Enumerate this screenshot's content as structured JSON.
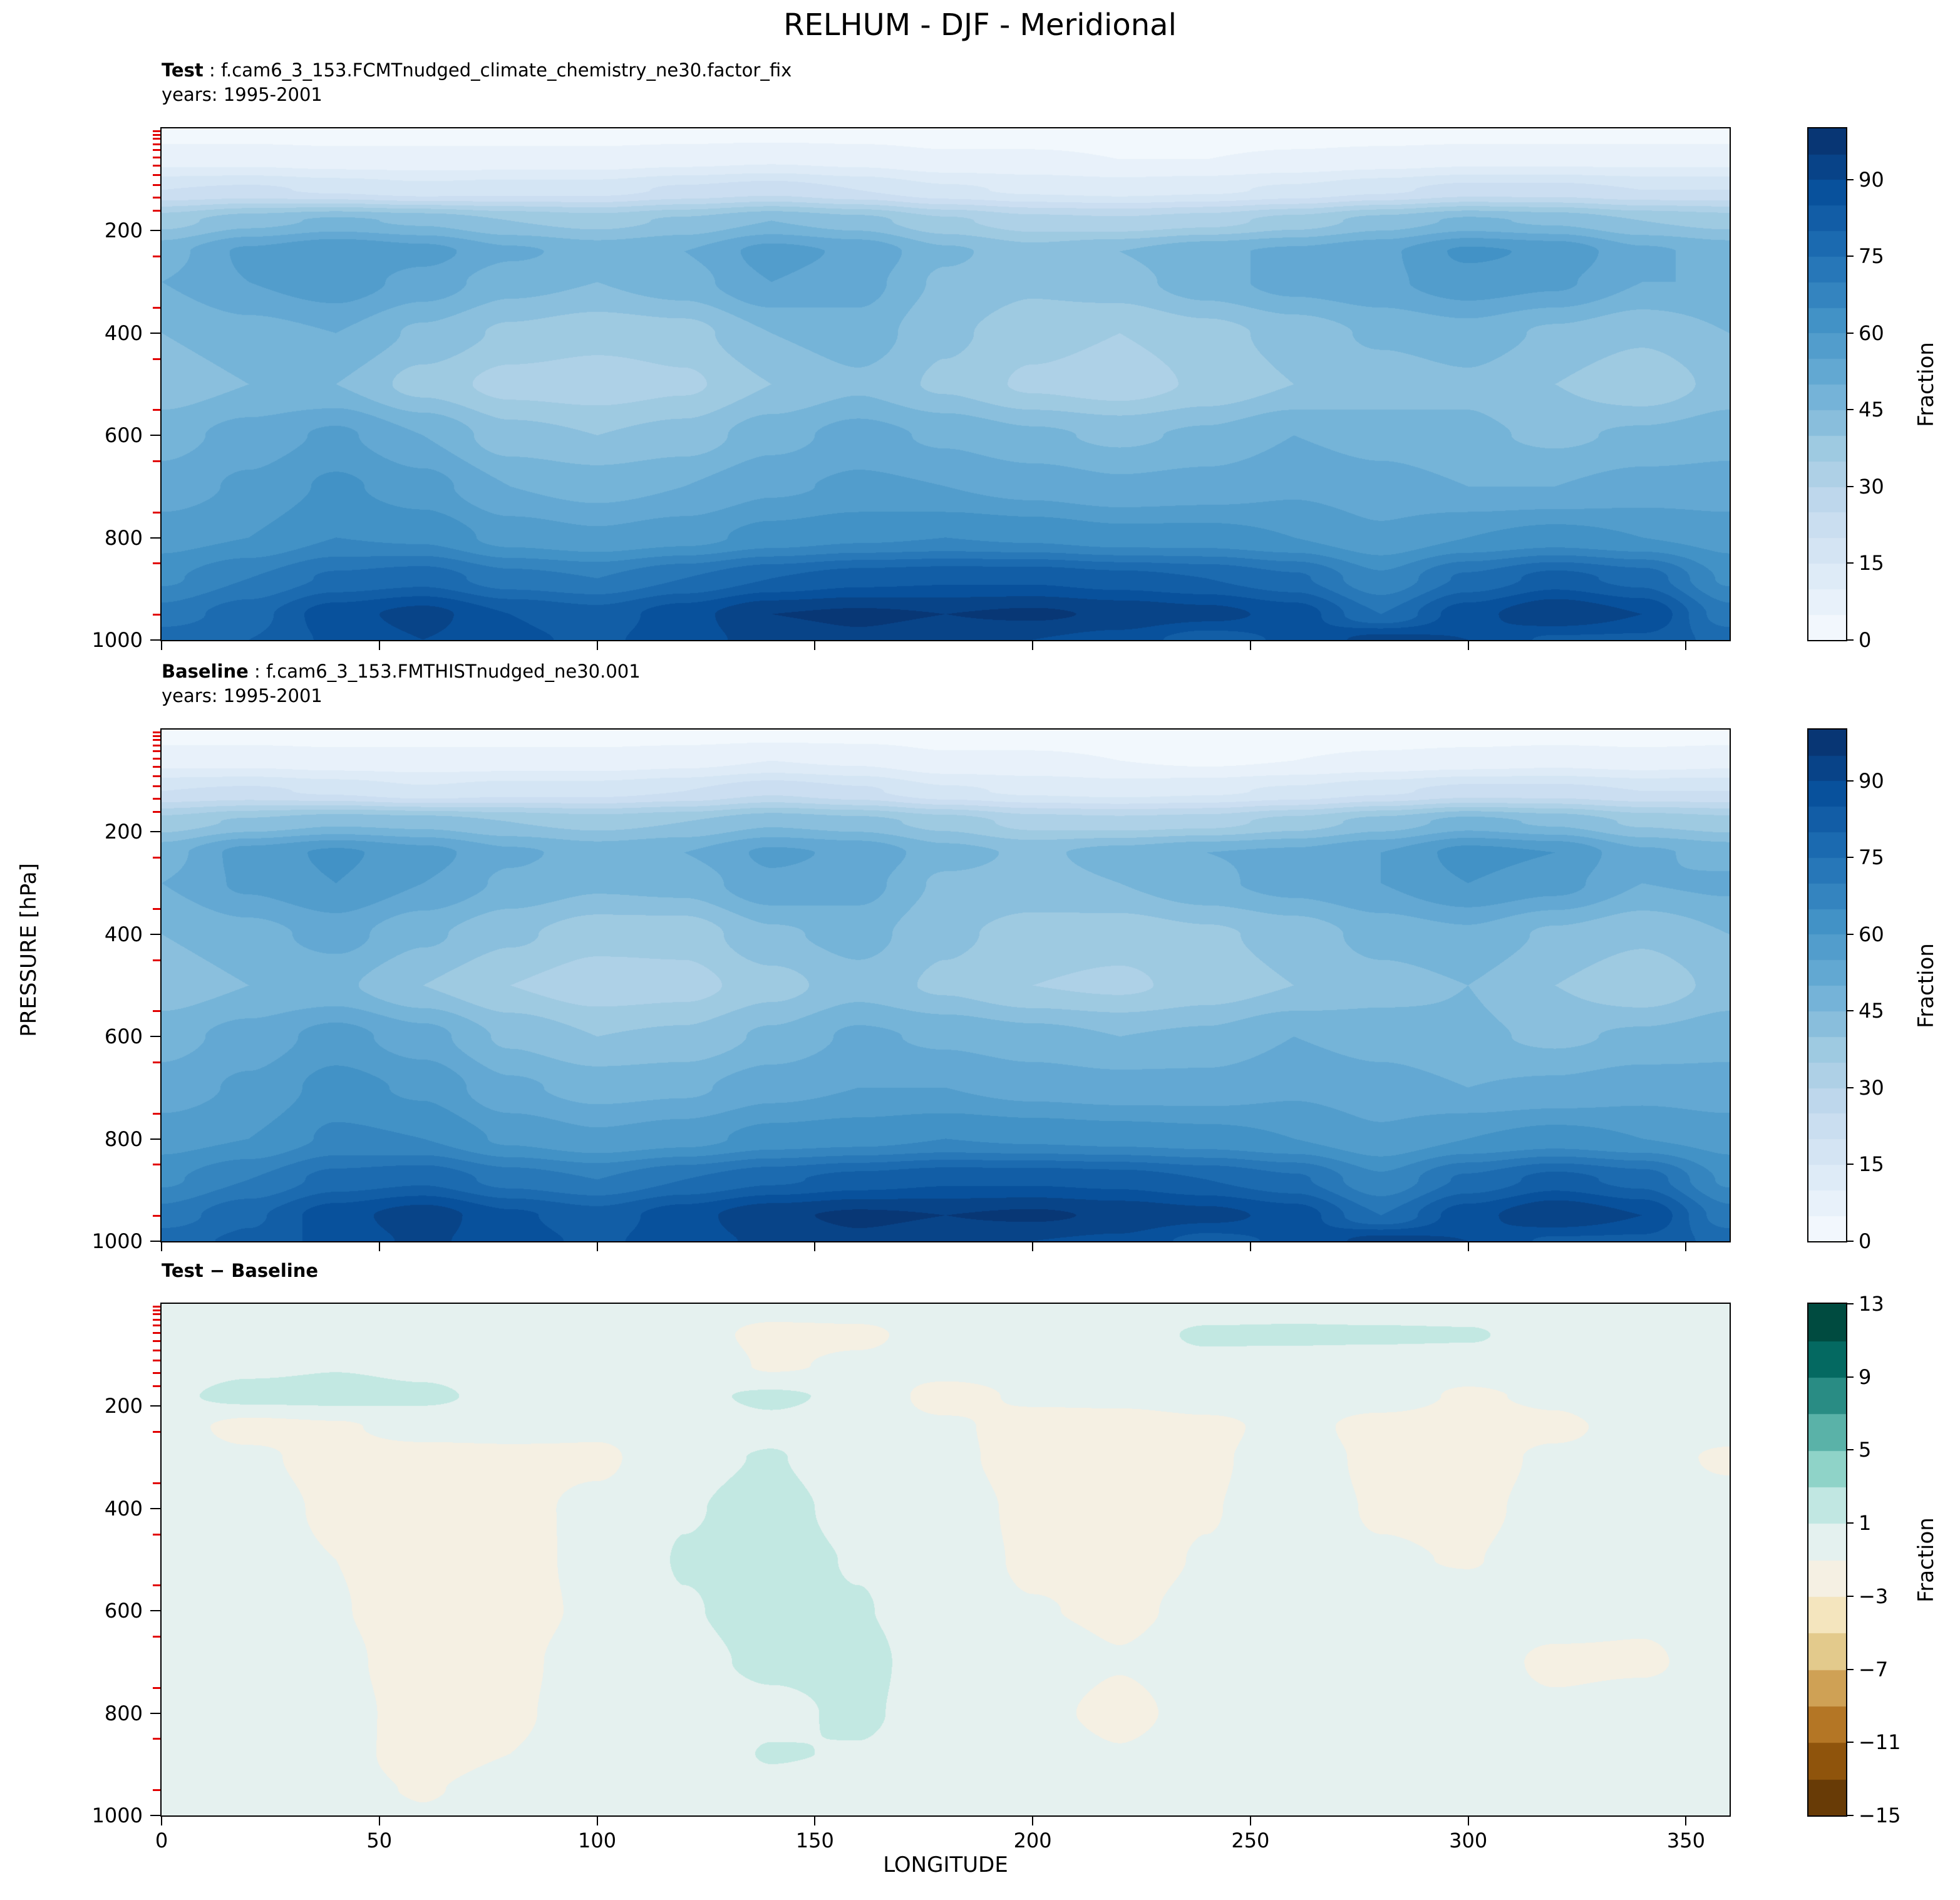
{
  "title": "RELHUM - DJF - Meridional",
  "panels": [
    {
      "label_bold": "Test",
      "label_rest": " : f.cam6_3_153.FCMTnudged_climate_chemistry_ne30.factor_fix",
      "years": "years: 1995-2001"
    },
    {
      "label_bold": "Baseline",
      "label_rest": " : f.cam6_3_153.FMTHISTnudged_ne30.001",
      "years": "years: 1995-2001"
    },
    {
      "label_bold": "Test − Baseline",
      "label_rest": "",
      "years": ""
    }
  ],
  "axes": {
    "xlabel": "LONGITUDE",
    "ylabel": "PRESSURE [hPa]",
    "xticks": [
      0,
      50,
      100,
      150,
      200,
      250,
      300,
      350
    ],
    "yticks": [
      200,
      400,
      600,
      800,
      1000
    ],
    "xlim": [
      0,
      360
    ],
    "ylim_top": 0,
    "ylim_bottom": 1000,
    "red_minor_ticks": [
      5,
      12,
      20,
      30,
      42,
      56,
      72,
      90,
      110,
      135,
      160,
      250,
      350,
      450,
      550,
      650,
      750,
      850,
      950
    ]
  },
  "colormaps": {
    "Blues": [
      [
        247,
        251,
        255
      ],
      [
        222,
        235,
        247
      ],
      [
        198,
        219,
        239
      ],
      [
        158,
        202,
        225
      ],
      [
        107,
        174,
        214
      ],
      [
        66,
        146,
        198
      ],
      [
        33,
        113,
        181
      ],
      [
        8,
        81,
        156
      ],
      [
        8,
        48,
        107
      ]
    ],
    "BrBG": [
      [
        84,
        48,
        5
      ],
      [
        140,
        81,
        10
      ],
      [
        191,
        129,
        45
      ],
      [
        223,
        194,
        125
      ],
      [
        246,
        232,
        195
      ],
      [
        245,
        245,
        245
      ],
      [
        199,
        234,
        229
      ],
      [
        128,
        205,
        193
      ],
      [
        53,
        151,
        143
      ],
      [
        1,
        102,
        94
      ],
      [
        0,
        60,
        48
      ]
    ]
  },
  "chart_data": [
    {
      "type": "heatmap",
      "name": "Test",
      "variable": "RELHUM",
      "season": "DJF",
      "xlabel": "LONGITUDE",
      "ylabel": "PRESSURE [hPa]",
      "colormap": "Blues",
      "colorbar_label": "Fraction",
      "colorbar_ticks": [
        0,
        15,
        30,
        45,
        60,
        75,
        90
      ],
      "levels": {
        "min": 0,
        "max": 100,
        "step": 5
      },
      "x_lon": [
        0,
        20,
        40,
        60,
        80,
        100,
        120,
        140,
        160,
        180,
        200,
        220,
        240,
        260,
        280,
        300,
        320,
        340,
        360
      ],
      "y_pressure_hPa": [
        0,
        60,
        120,
        180,
        240,
        300,
        400,
        500,
        600,
        700,
        800,
        880,
        950,
        1000
      ],
      "values": [
        [
          2,
          2,
          2,
          2,
          2,
          2,
          2,
          2,
          2,
          2,
          2,
          2,
          2,
          2,
          2,
          2,
          2,
          2,
          2
        ],
        [
          8,
          8,
          7,
          7,
          7,
          7,
          8,
          9,
          8,
          6,
          6,
          5,
          5,
          6,
          7,
          8,
          8,
          8,
          8
        ],
        [
          20,
          21,
          19,
          17,
          18,
          18,
          21,
          23,
          20,
          16,
          14,
          13,
          14,
          16,
          19,
          22,
          22,
          20,
          20
        ],
        [
          38,
          43,
          46,
          44,
          40,
          38,
          41,
          45,
          42,
          36,
          32,
          31,
          33,
          37,
          42,
          46,
          44,
          40,
          38
        ],
        [
          48,
          56,
          60,
          57,
          51,
          48,
          50,
          57,
          54,
          46,
          42,
          45,
          49,
          51,
          54,
          61,
          59,
          51,
          48
        ],
        [
          50,
          55,
          58,
          53,
          47,
          45,
          48,
          55,
          52,
          44,
          41,
          43,
          48,
          52,
          54,
          58,
          56,
          50,
          50
        ],
        [
          45,
          48,
          50,
          44,
          39,
          37,
          38,
          45,
          48,
          41,
          37,
          35,
          38,
          42,
          46,
          48,
          44,
          41,
          45
        ],
        [
          42,
          45,
          45,
          38,
          33,
          32,
          34,
          40,
          44,
          39,
          34,
          32,
          36,
          40,
          42,
          44,
          40,
          36,
          42
        ],
        [
          48,
          52,
          56,
          50,
          42,
          40,
          42,
          48,
          52,
          49,
          46,
          44,
          46,
          50,
          48,
          46,
          44,
          46,
          48
        ],
        [
          52,
          56,
          61,
          57,
          50,
          48,
          50,
          54,
          56,
          55,
          53,
          51,
          52,
          54,
          52,
          50,
          50,
          52,
          52
        ],
        [
          58,
          60,
          65,
          64,
          58,
          56,
          58,
          62,
          64,
          65,
          64,
          62,
          62,
          60,
          56,
          60,
          62,
          60,
          58
        ],
        [
          64,
          70,
          76,
          78,
          72,
          70,
          75,
          80,
          83,
          84,
          84,
          82,
          80,
          76,
          66,
          76,
          82,
          78,
          64
        ],
        [
          72,
          78,
          88,
          92,
          85,
          82,
          88,
          95,
          96,
          95,
          96,
          94,
          92,
          88,
          75,
          88,
          95,
          90,
          72
        ],
        [
          78,
          80,
          86,
          90,
          86,
          84,
          88,
          92,
          94,
          92,
          90,
          88,
          82,
          86,
          92,
          90,
          84,
          84,
          78
        ]
      ]
    },
    {
      "type": "heatmap",
      "name": "Baseline",
      "variable": "RELHUM",
      "season": "DJF",
      "xlabel": "LONGITUDE",
      "ylabel": "PRESSURE [hPa]",
      "colormap": "Blues",
      "colorbar_label": "Fraction",
      "colorbar_ticks": [
        0,
        15,
        30,
        45,
        60,
        75,
        90
      ],
      "levels": {
        "min": 0,
        "max": 100,
        "step": 5
      },
      "x_lon": [
        0,
        20,
        40,
        60,
        80,
        100,
        120,
        140,
        160,
        180,
        200,
        220,
        240,
        260,
        280,
        300,
        320,
        340,
        360
      ],
      "y_pressure_hPa": [
        0,
        60,
        120,
        180,
        240,
        300,
        400,
        500,
        600,
        700,
        800,
        880,
        950,
        1000
      ],
      "values": [
        [
          2,
          2,
          2,
          2,
          2,
          2,
          2,
          2,
          2,
          2,
          2,
          2,
          2,
          2,
          2,
          2,
          2,
          2,
          2
        ],
        [
          8,
          8,
          7,
          7,
          7,
          7,
          8,
          10,
          9,
          6,
          6,
          5,
          4,
          5,
          6,
          7,
          8,
          7,
          8
        ],
        [
          20,
          21,
          19,
          16,
          18,
          18,
          20,
          24,
          21,
          16,
          14,
          13,
          14,
          16,
          19,
          22,
          22,
          20,
          20
        ],
        [
          37,
          41,
          44,
          43,
          40,
          38,
          40,
          44,
          42,
          38,
          33,
          32,
          33,
          37,
          42,
          47,
          44,
          39,
          37
        ],
        [
          48,
          57,
          61,
          57,
          51,
          48,
          50,
          56,
          54,
          47,
          44,
          47,
          50,
          51,
          55,
          62,
          60,
          51,
          48
        ],
        [
          50,
          56,
          60,
          55,
          49,
          46,
          47,
          54,
          52,
          44,
          43,
          45,
          49,
          52,
          55,
          60,
          57,
          50,
          51
        ],
        [
          45,
          48,
          52,
          46,
          41,
          37,
          37,
          44,
          47,
          41,
          38,
          37,
          39,
          42,
          47,
          49,
          44,
          41,
          45
        ],
        [
          42,
          45,
          46,
          40,
          35,
          32,
          33,
          38,
          43,
          39,
          35,
          34,
          37,
          40,
          43,
          45,
          40,
          36,
          42
        ],
        [
          48,
          52,
          57,
          52,
          44,
          40,
          41,
          46,
          51,
          49,
          47,
          45,
          46,
          50,
          48,
          46,
          44,
          46,
          48
        ],
        [
          52,
          56,
          62,
          59,
          51,
          48,
          49,
          53,
          55,
          55,
          53,
          52,
          52,
          54,
          52,
          50,
          51,
          53,
          52
        ],
        [
          58,
          60,
          66,
          65,
          59,
          56,
          58,
          62,
          63,
          65,
          64,
          63,
          62,
          60,
          56,
          60,
          62,
          60,
          58
        ],
        [
          64,
          70,
          77,
          79,
          73,
          70,
          75,
          79,
          82,
          84,
          84,
          83,
          80,
          76,
          66,
          76,
          82,
          78,
          64
        ],
        [
          72,
          79,
          88,
          93,
          86,
          82,
          88,
          94,
          96,
          95,
          96,
          94,
          92,
          88,
          75,
          88,
          95,
          90,
          72
        ],
        [
          78,
          81,
          87,
          91,
          87,
          84,
          88,
          91,
          94,
          92,
          90,
          89,
          83,
          86,
          92,
          90,
          84,
          84,
          78
        ]
      ]
    },
    {
      "type": "heatmap",
      "name": "Test − Baseline",
      "variable": "RELHUM difference",
      "season": "DJF",
      "xlabel": "LONGITUDE",
      "ylabel": "PRESSURE [hPa]",
      "colormap": "BrBG",
      "colorbar_label": "Fraction",
      "colorbar_ticks": [
        -15,
        -11,
        -7,
        -3,
        1,
        5,
        9,
        13
      ],
      "levels": {
        "min": -15,
        "max": 13,
        "step": 2
      },
      "x_lon": [
        0,
        20,
        40,
        60,
        80,
        100,
        120,
        140,
        160,
        180,
        200,
        220,
        240,
        260,
        280,
        300,
        320,
        340,
        360
      ],
      "y_pressure_hPa": [
        0,
        60,
        120,
        180,
        240,
        300,
        400,
        500,
        600,
        700,
        800,
        880,
        950,
        1000
      ],
      "values": [
        [
          0,
          0,
          0,
          0,
          0,
          0,
          0,
          0,
          0,
          0,
          0,
          0,
          0,
          0,
          0,
          0,
          0,
          0,
          0
        ],
        [
          0,
          0,
          0,
          0,
          0,
          0,
          0,
          -1.6,
          -1.4,
          0,
          0,
          0,
          1.3,
          1.4,
          1.3,
          1.2,
          0,
          0.8,
          0
        ],
        [
          0,
          0.6,
          0.9,
          0.6,
          0,
          0,
          0.9,
          -1.3,
          -0.6,
          0,
          0,
          0,
          0.4,
          0,
          0,
          0,
          0.5,
          0,
          0
        ],
        [
          0.6,
          1.6,
          1.7,
          1.3,
          0.5,
          0,
          0.6,
          1.3,
          0.6,
          -1.9,
          -0.6,
          -0.4,
          0,
          0,
          0,
          -1.3,
          -0.6,
          0.9,
          0.6
        ],
        [
          0,
          -1.7,
          -1.3,
          0,
          0,
          -0.6,
          0,
          0.6,
          0,
          -0.6,
          -2,
          -2.1,
          -1.5,
          -0.3,
          -1.8,
          -2,
          -1.5,
          0,
          0
        ],
        [
          0,
          -0.6,
          -1.8,
          -2,
          -1.7,
          -1.4,
          0.6,
          1.1,
          0,
          -0.5,
          -1.9,
          -2.1,
          -1.3,
          0,
          -1.5,
          -1.9,
          -0.6,
          0,
          -1.4
        ],
        [
          0,
          0,
          -1.4,
          -2.1,
          -1.6,
          -0.5,
          0.9,
          1.5,
          0.5,
          0,
          -1.5,
          -1.9,
          -1.1,
          0,
          -1.2,
          -1.5,
          -0.3,
          0,
          0
        ],
        [
          0,
          0,
          -1,
          -2.1,
          -1.9,
          -0.3,
          1.1,
          1.6,
          0.9,
          0,
          -1.3,
          -1.6,
          -0.9,
          0,
          -0.8,
          -1.1,
          0,
          0,
          0
        ],
        [
          0,
          0,
          -0.9,
          -2,
          -1.8,
          -0.6,
          0.9,
          1.6,
          1.1,
          0,
          -0.9,
          -1.3,
          -0.6,
          0,
          0,
          0,
          0,
          -0.6,
          0
        ],
        [
          0,
          0,
          -0.6,
          -1.9,
          -1.5,
          0,
          0.6,
          1.3,
          1.5,
          0,
          0,
          -0.9,
          0,
          0,
          0,
          0,
          -1.4,
          -1.3,
          0
        ],
        [
          0,
          0,
          -0.4,
          -1.7,
          -1.3,
          0,
          0,
          0.6,
          1.3,
          0,
          -0.5,
          -1.5,
          -0.3,
          0,
          0,
          0,
          -0.6,
          0,
          0
        ],
        [
          0,
          0,
          -0.6,
          -1.5,
          -1,
          0,
          0,
          1.1,
          0.9,
          0,
          0,
          -0.9,
          0,
          0,
          0,
          0,
          0,
          0,
          0
        ],
        [
          0,
          -0.9,
          -0.6,
          -1.1,
          -0.5,
          0,
          0,
          0.6,
          0,
          0,
          0,
          -0.3,
          0,
          0,
          0,
          0,
          0,
          0,
          0
        ],
        [
          0,
          -0.6,
          0,
          -0.9,
          0,
          0,
          0,
          0,
          0,
          0,
          0,
          0,
          0,
          0,
          0,
          0,
          0,
          0,
          0
        ]
      ]
    }
  ]
}
